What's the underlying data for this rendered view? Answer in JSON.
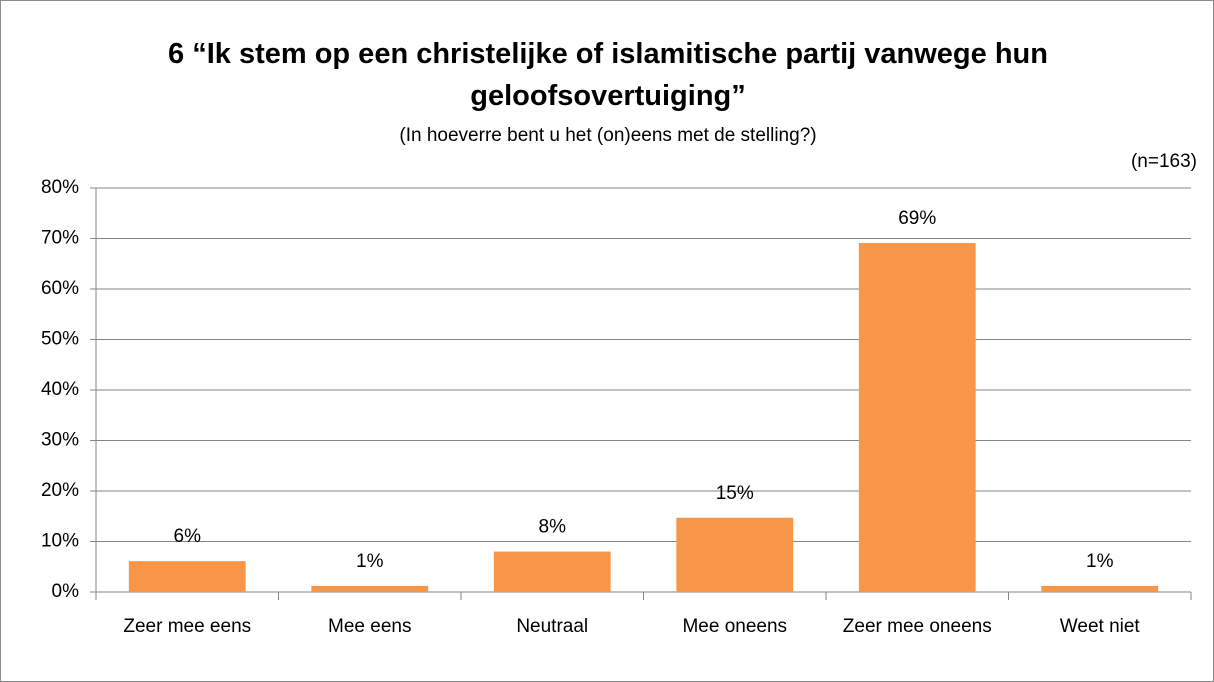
{
  "chart_data": {
    "type": "bar",
    "title": "6 “Ik stem op een christelijke of islamitische partij vanwege hun geloofsovertuiging”",
    "subtitle": "(In hoeverre bent u het (on)eens met de stelling?)",
    "note": "(n=163)",
    "categories": [
      "Zeer mee eens",
      "Mee eens",
      "Neutraal",
      "Mee oneens",
      "Zeer mee oneens",
      "Weet niet"
    ],
    "values": [
      6.1,
      1.2,
      8.0,
      14.7,
      69.1,
      1.2
    ],
    "value_labels": [
      "6%",
      "1%",
      "8%",
      "15%",
      "69%",
      "1%"
    ],
    "color": "#f79646",
    "ylim": [
      0,
      80
    ],
    "yticks": [
      {
        "value": 0,
        "label": "0%"
      },
      {
        "value": 10,
        "label": "10%"
      },
      {
        "value": 20,
        "label": "20%"
      },
      {
        "value": 30,
        "label": "30%"
      },
      {
        "value": 40,
        "label": "40%"
      },
      {
        "value": 50,
        "label": "50%"
      },
      {
        "value": 60,
        "label": "60%"
      },
      {
        "value": 70,
        "label": "70%"
      },
      {
        "value": 80,
        "label": "80%"
      }
    ],
    "grid": true
  }
}
